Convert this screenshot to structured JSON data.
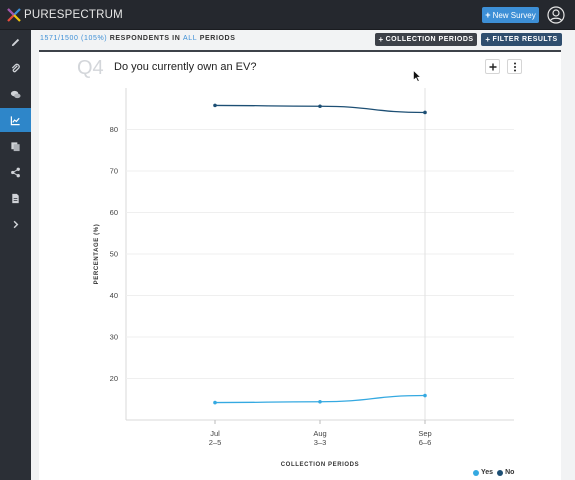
{
  "app": {
    "logo_text": "PURESPECTRUM"
  },
  "header": {
    "new_survey_label": "New Survey"
  },
  "sidebar": {
    "items": [
      {
        "icon": "pencil-icon"
      },
      {
        "icon": "paperclip-icon"
      },
      {
        "icon": "chat-icon"
      },
      {
        "icon": "chart-icon",
        "active": true
      },
      {
        "icon": "copy-icon"
      },
      {
        "icon": "share-icon"
      },
      {
        "icon": "document-icon"
      },
      {
        "icon": "chevron-right-icon"
      }
    ]
  },
  "status": {
    "counts": "1571/1500 (105%)",
    "respondents_in": "RESPONDENTS IN",
    "all": "ALL",
    "periods": "PERIODS"
  },
  "toolbar": {
    "collection_periods_label": "COLLECTION PERIODS",
    "filter_results_label": "FILTER RESULTS"
  },
  "question": {
    "number": "Q4",
    "title": "Do you currently own an EV?"
  },
  "colors": {
    "yes": "#35a9e1",
    "no": "#1d4f74",
    "accent": "#3d8fd6"
  },
  "chart_data": {
    "type": "line",
    "x": [
      "Jul 2-5",
      "Aug 3-3",
      "Sep 6-6"
    ],
    "x_tick_lines": [
      [
        "Jul",
        "2–5"
      ],
      [
        "Aug",
        "3–3"
      ],
      [
        "Sep",
        "6–6"
      ]
    ],
    "xlabel": "COLLECTION PERIODS",
    "ylabel": "PERCENTAGE (%)",
    "y_ticks": [
      20,
      30,
      40,
      50,
      60,
      70,
      80
    ],
    "ylim": [
      10,
      90
    ],
    "series": [
      {
        "name": "Yes",
        "values": [
          14.2,
          14.4,
          15.9
        ]
      },
      {
        "name": "No",
        "values": [
          85.8,
          85.6,
          84.1
        ]
      }
    ],
    "legend_position": "bottom-right",
    "grid": true
  }
}
